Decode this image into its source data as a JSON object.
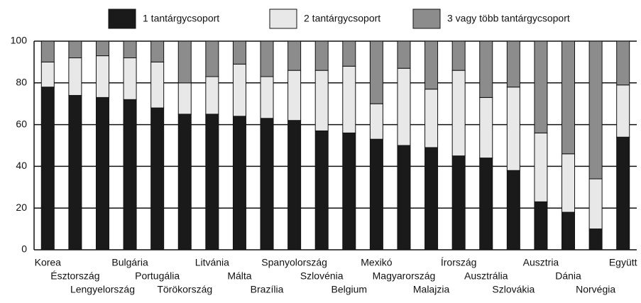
{
  "chart_data": {
    "type": "stacked_bar",
    "categories": [
      "Korea",
      "Észtország",
      "Lengyelország",
      "Bulgária",
      "Portugália",
      "Törökország",
      "Litvánia",
      "Málta",
      "Brazília",
      "Spanyolország",
      "Szlovénia",
      "Belgium",
      "Mexikó",
      "Magyarország",
      "Malajzia",
      "Írország",
      "Ausztrália",
      "Szlovákia",
      "Ausztria",
      "Dánia",
      "Norvégia",
      "Együtt"
    ],
    "series": [
      {
        "name": "1 tantárgycsoport",
        "color": "#1a1a1a",
        "values": [
          78,
          74,
          73,
          72,
          68,
          65,
          65,
          64,
          63,
          62,
          57,
          56,
          53,
          50,
          49,
          45,
          44,
          38,
          23,
          18,
          10,
          54
        ]
      },
      {
        "name": "2 tantárgycsoport",
        "color": "#e8e8e8",
        "values": [
          12,
          18,
          20,
          20,
          22,
          15,
          18,
          25,
          20,
          24,
          29,
          32,
          17,
          37,
          28,
          41,
          29,
          40,
          33,
          28,
          24,
          25
        ]
      },
      {
        "name": "3 vagy több tantárgycsoport",
        "color": "#8c8c8c",
        "values": [
          10,
          8,
          7,
          8,
          10,
          20,
          17,
          11,
          17,
          14,
          14,
          12,
          30,
          13,
          23,
          14,
          27,
          22,
          44,
          54,
          66,
          21
        ]
      }
    ],
    "ylim": [
      0,
      100
    ],
    "yticks": [
      0,
      20,
      40,
      60,
      80,
      100
    ],
    "grid": true
  }
}
